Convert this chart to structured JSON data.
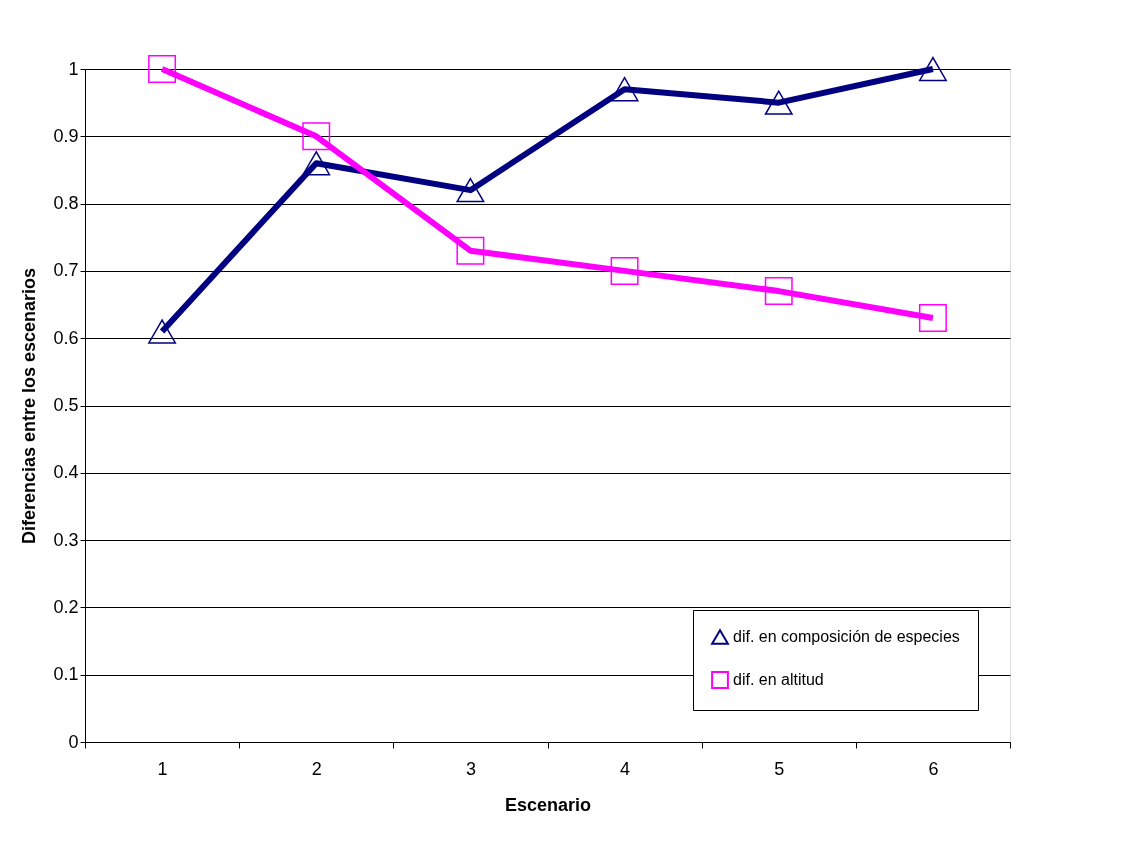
{
  "chart_data": {
    "type": "line",
    "xlabel": "Escenario",
    "ylabel": "Diferencias entre los escenarios",
    "categories": [
      "1",
      "2",
      "3",
      "4",
      "5",
      "6"
    ],
    "series": [
      {
        "name": "dif. en composición de especies",
        "color": "#000080",
        "marker": "triangle",
        "values": [
          0.61,
          0.86,
          0.82,
          0.97,
          0.95,
          1.0
        ]
      },
      {
        "name": "dif. en altitud",
        "color": "#ff00ff",
        "marker": "square",
        "values": [
          1.0,
          0.9,
          0.73,
          0.7,
          0.67,
          0.63
        ]
      }
    ],
    "ylim": [
      0,
      1
    ],
    "yticks": [
      0,
      0.1,
      0.2,
      0.3,
      0.4,
      0.5,
      0.6,
      0.7,
      0.8,
      0.9,
      1
    ],
    "grid": "y",
    "legend": "bottom right",
    "line_style": "solid"
  }
}
